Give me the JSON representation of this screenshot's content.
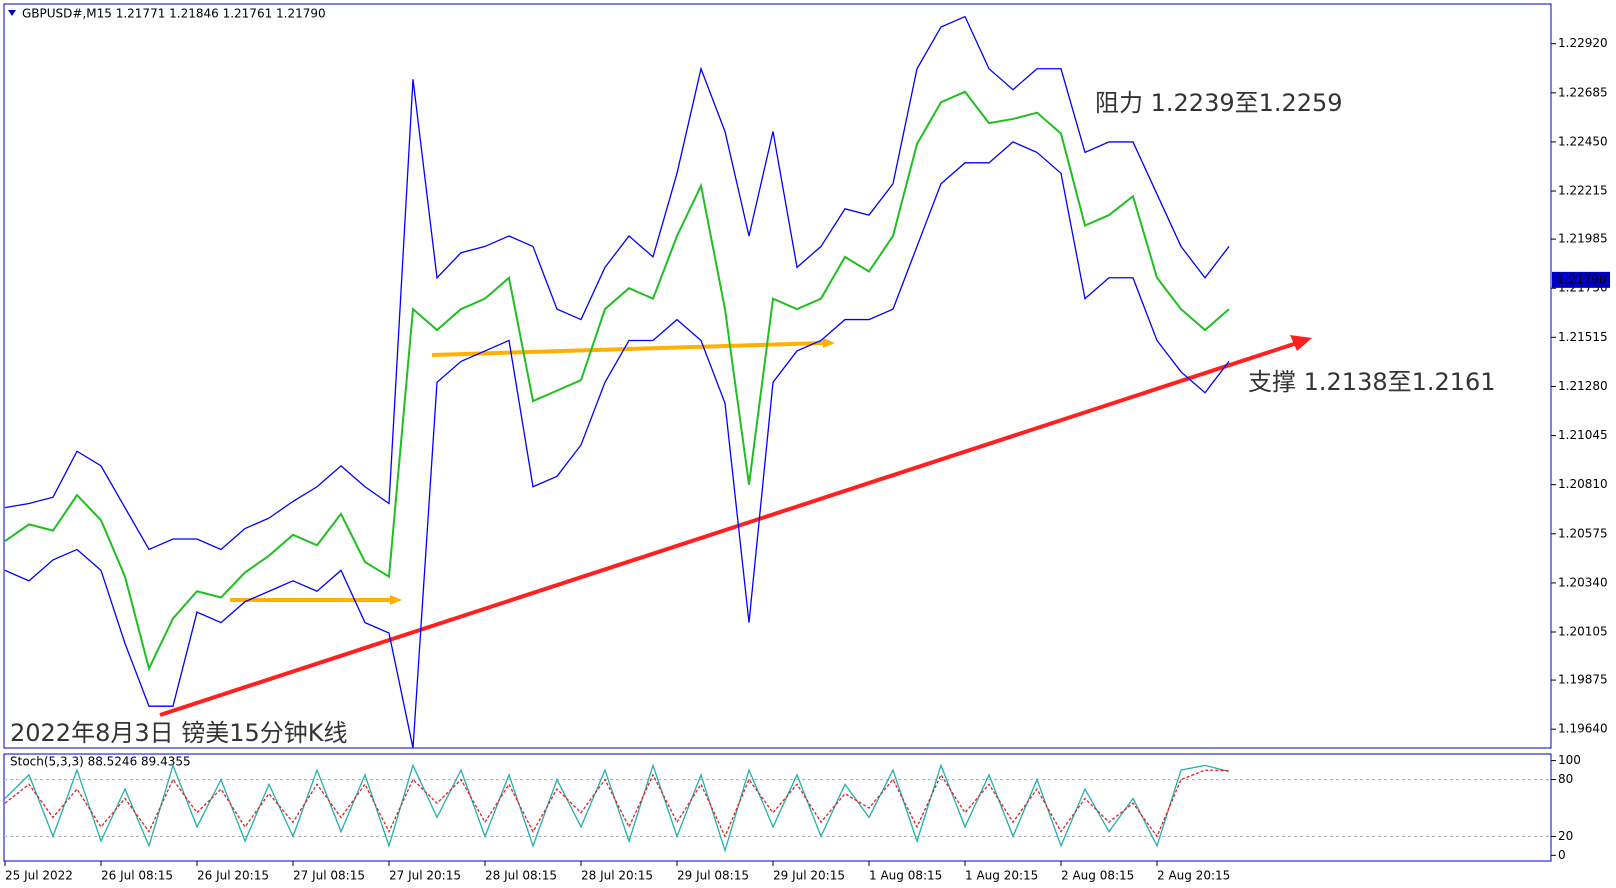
{
  "chart_data": [
    {
      "type": "line",
      "title": "GBPUSD#,M15  1.21771 1.21846 1.21761 1.21790",
      "annotations": [
        "阻力 1.2239至1.2259",
        "支撑 1.2138至1.2161",
        "2022年8月3日 镑美15分钟K线"
      ],
      "categories": [
        "25 Jul 2022",
        null,
        null,
        null,
        "26 Jul 08:15",
        null,
        null,
        null,
        "26 Jul 20:15",
        null,
        null,
        null,
        "27 Jul 08:15",
        null,
        null,
        null,
        "27 Jul 20:15",
        null,
        null,
        null,
        "28 Jul 08:15",
        null,
        null,
        null,
        "28 Jul 20:15",
        null,
        null,
        null,
        "29 Jul 08:15",
        null,
        null,
        null,
        "29 Jul 20:15",
        null,
        null,
        null,
        "1 Aug 08:15",
        null,
        null,
        null,
        "1 Aug 20:15",
        null,
        null,
        null,
        "2 Aug 08:15",
        null,
        null,
        null,
        "2 Aug 20:15",
        null,
        null,
        null
      ],
      "series": [
        {
          "color": "#1fbf1f",
          "values": [
            1.2054,
            1.2062,
            1.2059,
            1.2076,
            1.2064,
            1.2037,
            1.1993,
            1.2017,
            1.203,
            1.2027,
            1.2039,
            1.2047,
            1.2057,
            1.2052,
            1.2067,
            1.2044,
            1.2037,
            1.2165,
            1.2155,
            1.2165,
            1.217,
            1.218,
            1.2121,
            1.2126,
            1.2131,
            1.2165,
            1.2175,
            1.217,
            1.22,
            1.2224,
            1.2165,
            1.2081,
            1.217,
            1.2165,
            1.217,
            1.219,
            1.2183,
            1.22,
            1.2244,
            1.2264,
            1.2269,
            1.2254,
            1.2256,
            1.2259,
            1.2249,
            1.2205,
            1.221,
            1.2219,
            1.218,
            1.2165,
            1.2155,
            1.2165
          ]
        },
        {
          "color": "#0000ff",
          "values": [
            1.207,
            1.2072,
            1.2075,
            1.2097,
            1.209,
            1.207,
            1.205,
            1.2055,
            1.2055,
            1.205,
            1.206,
            1.2065,
            1.2073,
            1.208,
            1.209,
            1.208,
            1.2072,
            1.2275,
            1.218,
            1.2192,
            1.2195,
            1.22,
            1.2195,
            1.2165,
            1.216,
            1.2185,
            1.22,
            1.219,
            1.223,
            1.228,
            1.225,
            1.22,
            1.225,
            1.2185,
            1.2195,
            1.2213,
            1.221,
            1.2225,
            1.228,
            1.23,
            1.2305,
            1.228,
            1.227,
            1.228,
            1.228,
            1.224,
            1.2245,
            1.2245,
            1.222,
            1.2195,
            1.218,
            1.2195
          ]
        },
        {
          "color": "#0000ff",
          "values": [
            1.204,
            1.2035,
            1.2045,
            1.205,
            1.204,
            1.2005,
            1.1975,
            1.1975,
            1.202,
            1.2015,
            1.2025,
            1.203,
            1.2035,
            1.203,
            1.204,
            1.2015,
            1.201,
            1.1955,
            1.213,
            1.214,
            1.2145,
            1.215,
            1.208,
            1.2085,
            1.21,
            1.213,
            1.215,
            1.215,
            1.216,
            1.215,
            1.212,
            1.2015,
            1.213,
            1.2145,
            1.215,
            1.216,
            1.216,
            1.2165,
            1.2195,
            1.2225,
            1.2235,
            1.2235,
            1.2245,
            1.224,
            1.223,
            1.217,
            1.218,
            1.218,
            1.215,
            1.2135,
            1.2125,
            1.214
          ]
        }
      ],
      "last_price": {
        "value": 1.2179,
        "label": "1.21790"
      },
      "ylim": [
        1.1955,
        1.2311
      ],
      "yticks": [
        {
          "value": 1.1964,
          "label": "1.19640"
        },
        {
          "value": 1.19875,
          "label": "1.19875"
        },
        {
          "value": 1.20105,
          "label": "1.20105"
        },
        {
          "value": 1.2034,
          "label": "1.20340"
        },
        {
          "value": 1.20575,
          "label": "1.20575"
        },
        {
          "value": 1.2081,
          "label": "1.20810"
        },
        {
          "value": 1.21045,
          "label": "1.21045"
        },
        {
          "value": 1.2128,
          "label": "1.21280"
        },
        {
          "value": 1.21515,
          "label": "1.21515"
        },
        {
          "value": 1.2175,
          "label": "1.21750"
        },
        {
          "value": 1.21985,
          "label": "1.21985"
        },
        {
          "value": 1.22215,
          "label": "1.22215"
        },
        {
          "value": 1.2245,
          "label": "1.22450"
        },
        {
          "value": 1.22685,
          "label": "1.22685"
        },
        {
          "value": 1.2292,
          "label": "1.22920"
        }
      ]
    },
    {
      "type": "line",
      "title": "Stoch(5,3,3) 88.5246 89.4355",
      "series": [
        {
          "color": "#20b2aa",
          "values": [
            60,
            85,
            20,
            90,
            15,
            70,
            10,
            95,
            30,
            80,
            15,
            75,
            20,
            90,
            25,
            85,
            10,
            95,
            40,
            90,
            20,
            85,
            10,
            80,
            30,
            90,
            15,
            95,
            20,
            85,
            5,
            90,
            30,
            85,
            20,
            75,
            40,
            90,
            15,
            95,
            30,
            85,
            20,
            80,
            10,
            70,
            25,
            60,
            10,
            90,
            95,
            88.5246
          ]
        },
        {
          "color": "#e02020",
          "values": [
            55,
            75,
            40,
            70,
            30,
            60,
            25,
            80,
            45,
            70,
            30,
            65,
            35,
            75,
            40,
            75,
            25,
            80,
            55,
            80,
            35,
            75,
            25,
            70,
            45,
            80,
            30,
            85,
            35,
            75,
            20,
            80,
            45,
            75,
            35,
            65,
            50,
            80,
            30,
            85,
            45,
            75,
            35,
            70,
            25,
            60,
            35,
            55,
            20,
            80,
            90,
            89.4355
          ]
        }
      ],
      "ylim": [
        -6,
        107
      ],
      "yticks": [
        0,
        20,
        80,
        100
      ]
    }
  ]
}
